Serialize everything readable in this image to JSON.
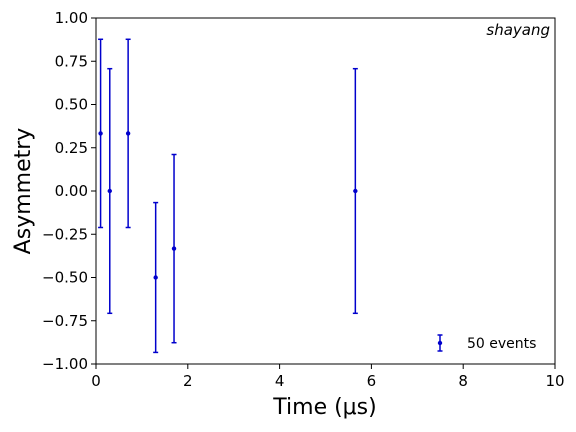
{
  "chart_data": {
    "type": "scatter",
    "annotation": "shayang",
    "xlabel": "Time (μs)",
    "ylabel": "Asymmetry",
    "xlim": [
      0,
      10
    ],
    "ylim": [
      -1.0,
      1.0
    ],
    "x_ticks": [
      0,
      2,
      4,
      6,
      8,
      10
    ],
    "x_tick_labels": [
      "0",
      "2",
      "4",
      "6",
      "8",
      "10"
    ],
    "y_ticks": [
      1.0,
      0.75,
      0.5,
      0.25,
      0.0,
      -0.25,
      -0.5,
      -0.75,
      -1.0
    ],
    "y_tick_labels": [
      "1.00",
      "0.75",
      "0.50",
      "0.25",
      "0.00",
      "−0.25",
      "−0.50",
      "−0.75",
      "−1.00"
    ],
    "grid": false,
    "legend_position": "lower-right",
    "series": [
      {
        "name": "50 events",
        "color": "#0000cc",
        "points": [
          {
            "x": 0.1,
            "y": 0.333,
            "yerr": 0.544
          },
          {
            "x": 0.3,
            "y": 0.0,
            "yerr": 0.707
          },
          {
            "x": 0.7,
            "y": 0.333,
            "yerr": 0.544
          },
          {
            "x": 1.3,
            "y": -0.5,
            "yerr": 0.433
          },
          {
            "x": 1.7,
            "y": -0.333,
            "yerr": 0.544
          },
          {
            "x": 5.65,
            "y": 0.0,
            "yerr": 0.707
          }
        ]
      }
    ]
  }
}
